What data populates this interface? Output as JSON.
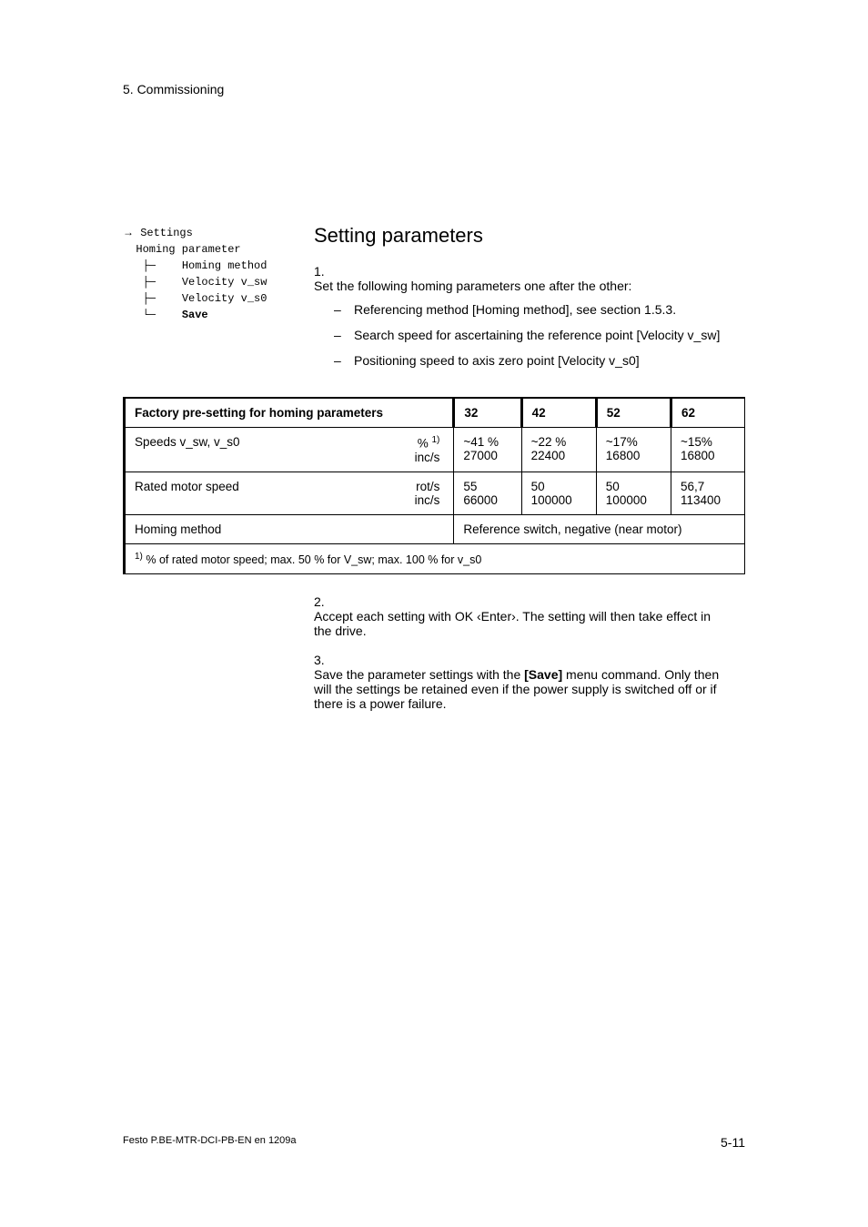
{
  "chapter": "5.   Commissioning",
  "sidebar": {
    "arrow": "→",
    "root": "Settings",
    "l1": "  Homing parameter",
    "l2": "    Homing method",
    "l3": "    Velocity v_sw",
    "l4": "    Velocity v_s0",
    "l5": "    Save"
  },
  "heading": "Setting parameters",
  "step1": {
    "num": "1.",
    "text": "Set the following homing parameters one after the other:",
    "sub": [
      {
        "text": "Referencing method [Homing method], see section 1.5.3."
      },
      {
        "text": "Search speed for ascertaining the reference point [Velocity v_sw]"
      },
      {
        "text": "Positioning speed to axis zero point [Velocity v_s0]"
      }
    ]
  },
  "table": {
    "header": {
      "title": "Factory pre-setting for homing parameters",
      "c32": "32",
      "c42": "42",
      "c52": "52",
      "c62": "62"
    },
    "rows": [
      {
        "label": "Speeds v_sw, v_s0",
        "unit1": "% ",
        "unit1_sup": "1)",
        "unit2": "inc/s",
        "v32a": "~41 %",
        "v32b": "27000",
        "v42a": "~22 %",
        "v42b": "22400",
        "v52a": "~17%",
        "v52b": "16800",
        "v62a": "~15%",
        "v62b": "16800"
      },
      {
        "label": "Rated motor speed",
        "unit1": "rot/s",
        "unit2": "inc/s",
        "v32a": "55",
        "v32b": "66000",
        "v42a": "50",
        "v42b": "100000",
        "v52a": "50",
        "v52b": "100000",
        "v62a": "56,7",
        "v62b": "113400"
      }
    ],
    "method_row": {
      "label": "Homing method",
      "value": "Reference switch, negative (near motor)"
    },
    "footnote_sup": "1)",
    "footnote": " % of rated motor speed; max. 50 % for V_sw; max. 100 % for v_s0"
  },
  "step2": {
    "num": "2.",
    "text": "Accept each setting with OK ‹Enter›. The setting will then take effect in the drive."
  },
  "step3": {
    "num": "3.",
    "text_a": "Save the parameter settings with the ",
    "bold": "[Save]",
    "text_b": " menu command. Only then will the settings be retained even if the power supply is switched off or if there is a power failure."
  },
  "footer": {
    "left": "Festo P.BE-MTR-DCI-PB-EN  en 1209a",
    "page": "5-11"
  }
}
